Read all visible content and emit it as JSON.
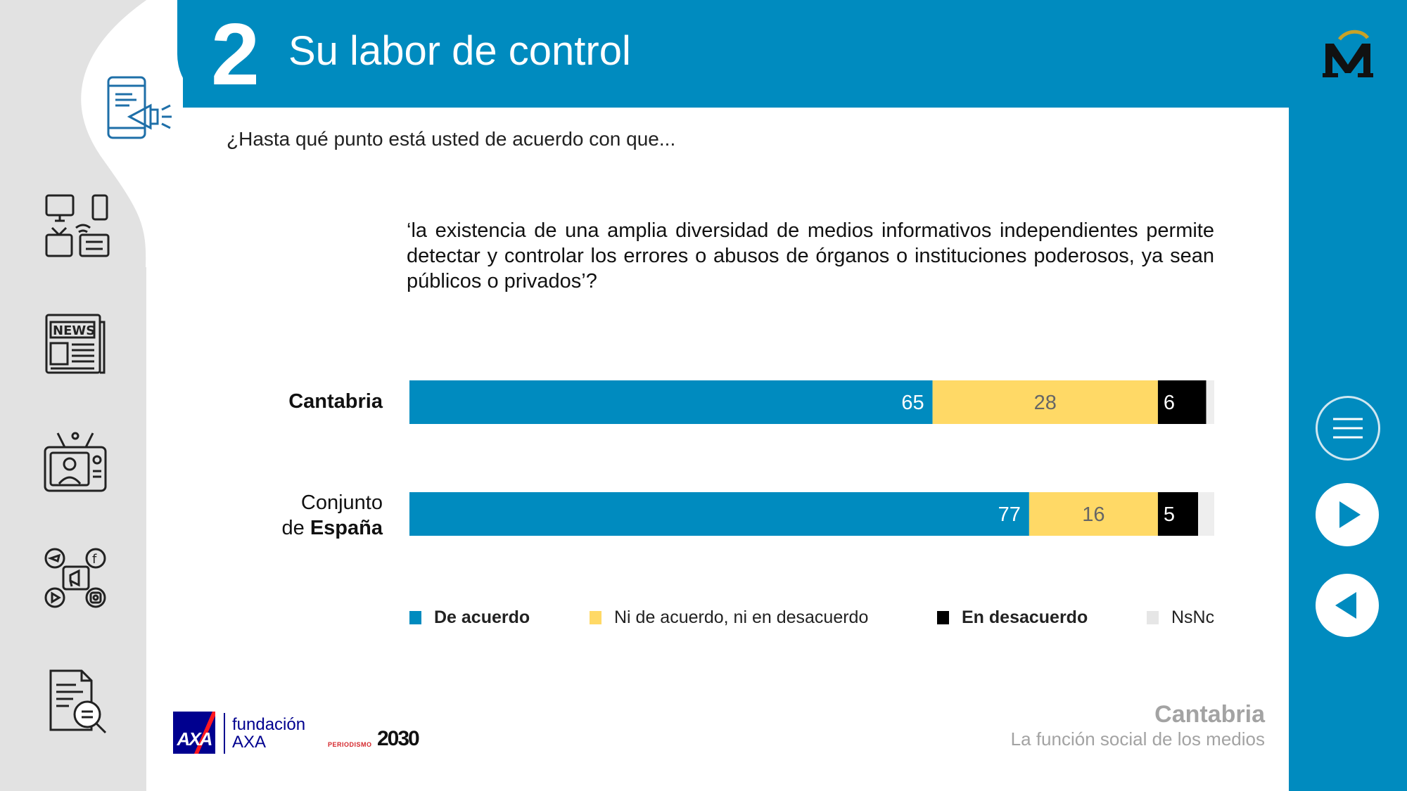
{
  "header": {
    "section_number": "2",
    "section_title": "Su labor de control"
  },
  "question": {
    "intro": "¿Hasta qué punto está usted de acuerdo con que...",
    "text": "‘la existencia de una amplia diversidad de medios informativos independientes permite detectar y controlar  los errores o abusos de órganos o instituciones poderosos, ya sean públicos o privados’?"
  },
  "rows": {
    "cantabria": "Cantabria",
    "espana_line1": "Conjunto",
    "espana_prefix": "de ",
    "espana_bold": "España"
  },
  "chart_data": {
    "type": "bar",
    "orientation": "horizontal-stacked",
    "categories": [
      "Cantabria",
      "Conjunto de España"
    ],
    "series": [
      {
        "name": "De acuerdo",
        "values": [
          65,
          77
        ],
        "color": "#008bbf",
        "label_color": "#ffffff"
      },
      {
        "name": "Ni de acuerdo, ni en desacuerdo",
        "values": [
          28,
          16
        ],
        "color": "#ffd966",
        "label_color": "#666666"
      },
      {
        "name": "En desacuerdo",
        "values": [
          6,
          5
        ],
        "color": "#000000",
        "label_color": "#ffffff"
      },
      {
        "name": "NsNc",
        "values": [
          1,
          2
        ],
        "color": "#eeeeee",
        "label_color": "#666666",
        "show_label": false
      }
    ],
    "xlim": [
      0,
      100
    ],
    "legend": "bottom",
    "grid": false
  },
  "legend": [
    {
      "label": "De acuerdo",
      "color": "#008bbf",
      "bold": true
    },
    {
      "label": "Ni de acuerdo, ni en desacuerdo",
      "color": "#ffd966",
      "bold": false
    },
    {
      "label": "En desacuerdo",
      "color": "#000000",
      "bold": true
    },
    {
      "label": "NsNc",
      "color": "#e6e6e6",
      "bold": false
    }
  ],
  "footer": {
    "region_title": "Cantabria",
    "region_subtitle": "La función social de los medios",
    "fundacion_line1": "fundación",
    "fundacion_line2": "AXA",
    "axa_logo_text": "AXA",
    "periodismo_small": "PERIODISMO",
    "periodismo_big": "2030"
  },
  "icons": {
    "sidebar": [
      "phone-megaphone-icon",
      "devices-icon",
      "newspaper-icon",
      "tv-presenter-icon",
      "social-media-icon",
      "document-search-icon"
    ],
    "newspaper_label": "NEWS",
    "nav": [
      "menu-icon",
      "play-forward-icon",
      "play-back-icon"
    ]
  },
  "colors": {
    "brand_blue": "#008bbf",
    "sidebar_grey": "#e2e2e2"
  }
}
